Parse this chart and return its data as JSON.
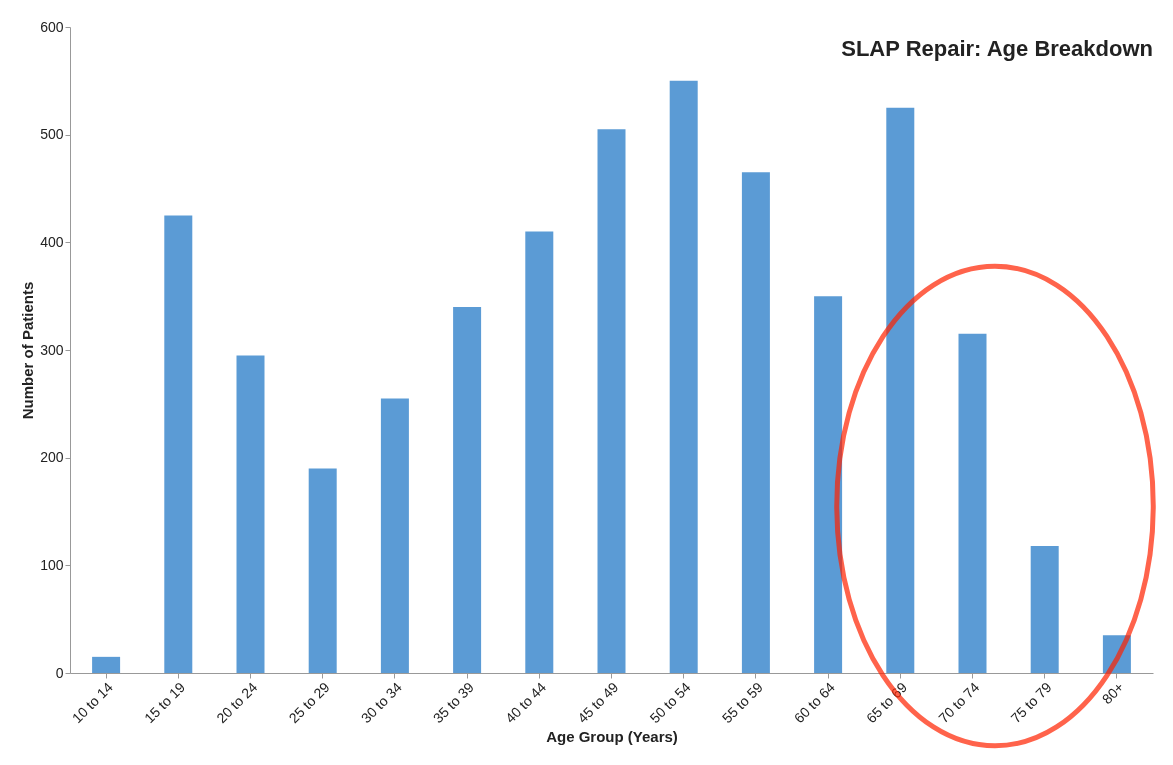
{
  "chart_data": {
    "type": "bar",
    "title": "SLAP Repair: Age Breakdown",
    "xlabel": "Age Group (Years)",
    "ylabel": "Number of Patients",
    "categories": [
      "10 to 14",
      "15 to 19",
      "20 to 24",
      "25 to 29",
      "30 to 34",
      "35 to 39",
      "40 to 44",
      "45 to 49",
      "50 to 54",
      "55 to 59",
      "60 to 64",
      "65 to 69",
      "70 to 74",
      "75 to 79",
      "80+"
    ],
    "values": [
      15,
      425,
      295,
      190,
      255,
      340,
      410,
      505,
      550,
      465,
      350,
      525,
      315,
      118,
      35
    ],
    "color": "#5b9bd5",
    "ylim": [
      0,
      600
    ],
    "yticks": [
      0,
      100,
      200,
      300,
      400,
      500,
      600
    ],
    "grid": false
  }
}
